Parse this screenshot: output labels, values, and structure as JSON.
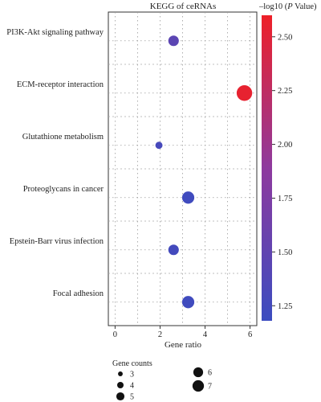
{
  "chart_data": {
    "type": "scatter",
    "title": "KEGG of ceRNAs",
    "xlabel": "Gene ratio",
    "ylabel": "",
    "xlim": [
      -0.3,
      6.3
    ],
    "xticks": [
      0,
      2,
      4,
      6
    ],
    "grid": true,
    "categories": [
      "PI3K-Akt signaling pathway",
      "ECM-receptor interaction",
      "Glutathione metabolism",
      "Proteoglycans in cancer",
      "Epstein-Barr virus infection",
      "Focal adhesion"
    ],
    "points": [
      {
        "category": "PI3K-Akt signaling pathway",
        "gene_ratio": 2.6,
        "gene_count": 5,
        "neg_log10_p": 1.45
      },
      {
        "category": "ECM-receptor interaction",
        "gene_ratio": 5.75,
        "gene_count": 8,
        "neg_log10_p": 2.55
      },
      {
        "category": "Glutathione metabolism",
        "gene_ratio": 1.95,
        "gene_count": 3,
        "neg_log10_p": 1.28
      },
      {
        "category": "Proteoglycans in cancer",
        "gene_ratio": 3.25,
        "gene_count": 6,
        "neg_log10_p": 1.22
      },
      {
        "category": "Epstein-Barr virus infection",
        "gene_ratio": 2.6,
        "gene_count": 5,
        "neg_log10_p": 1.25
      },
      {
        "category": "Focal adhesion",
        "gene_ratio": 3.25,
        "gene_count": 6,
        "neg_log10_p": 1.22
      }
    ],
    "size_legend": {
      "title": "Gene counts",
      "entries": [
        3,
        4,
        5,
        6,
        7
      ]
    },
    "colorbar": {
      "title_prefix": "–log10 (",
      "title_italic": "P",
      "title_suffix": " Value)",
      "min": 1.18,
      "max": 2.6,
      "ticks": [
        "1.25",
        "1.50",
        "1.75",
        "2.00",
        "2.25",
        "2.50"
      ],
      "low_color": "#3b4cc0",
      "high_color": "#ee2028"
    }
  }
}
